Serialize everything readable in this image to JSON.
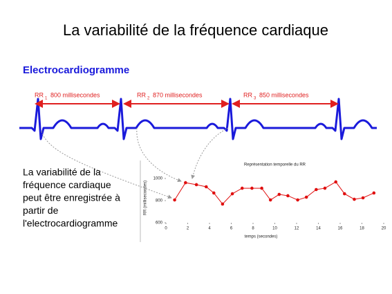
{
  "title": "La variabilité de la fréquence cardiaque",
  "heading": "Electrocardiogramme",
  "rr_intervals": [
    {
      "label": "RR",
      "sub": "1",
      "text": "800 millisecondes"
    },
    {
      "label": "RR",
      "sub": "2",
      "text": "870 millisecondes"
    },
    {
      "label": "RR",
      "sub": "3",
      "text": "850 millisecondes"
    }
  ],
  "text_lines": [
    "La variabilité de la",
    "fréquence cardiaque",
    "peut être enregistrée à",
    "partir de",
    "l'electrocardiogramme"
  ],
  "chart_data": {
    "type": "line",
    "title": "Représentation temporelle du RR",
    "x_label": "temps (secondes)",
    "y_label": "RR (millisecondes)",
    "x": [
      0.8,
      1.8,
      2.8,
      3.7,
      4.4,
      5.2,
      6.1,
      7.0,
      7.9,
      8.8,
      9.6,
      10.4,
      11.2,
      12.1,
      12.9,
      13.8,
      14.6,
      15.6,
      16.4,
      17.3,
      18.1,
      19.1
    ],
    "values": [
      806,
      962,
      944,
      925,
      869,
      769,
      862,
      912,
      912,
      912,
      806,
      856,
      844,
      806,
      831,
      900,
      912,
      969,
      862,
      812,
      825,
      869
    ],
    "color": "#e01010",
    "xlim": [
      0,
      20
    ],
    "xticks": [
      0,
      2,
      4,
      6,
      8,
      10,
      12,
      14,
      16,
      18,
      20
    ],
    "ylim": [
      600,
      1050
    ],
    "yticks": [
      600,
      800,
      1000
    ]
  }
}
